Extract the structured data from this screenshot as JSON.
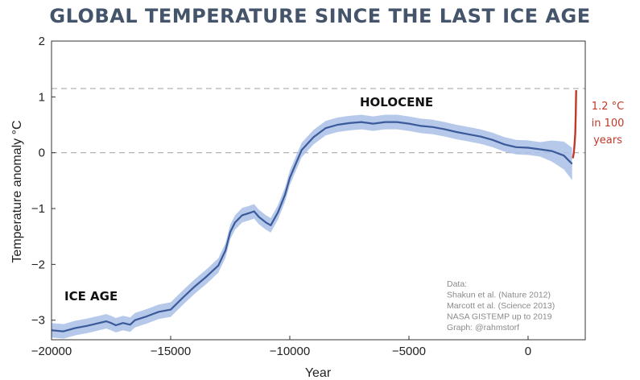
{
  "title": "GLOBAL TEMPERATURE SINCE THE LAST ICE AGE",
  "chart_data": {
    "type": "line",
    "title": "GLOBAL TEMPERATURE SINCE THE LAST ICE AGE",
    "xlabel": "Year",
    "ylabel": "Temperature anomaly °C",
    "xlim": [
      -20000,
      2400
    ],
    "ylim": [
      -3.35,
      2
    ],
    "xticks": [
      -20000,
      -15000,
      -10000,
      -5000,
      0
    ],
    "xtick_labels": [
      "−20000",
      "−15000",
      "−10000",
      "−5000",
      "0"
    ],
    "yticks": [
      2,
      1,
      0,
      -1,
      -2,
      -3
    ],
    "ytick_labels": [
      "2",
      "1",
      "0",
      "−1",
      "−2",
      "−3"
    ],
    "reference_lines": [
      0,
      1.15
    ],
    "series": [
      {
        "band_halfwidth": 0.13,
        "line_color": "#3b5a9a",
        "band_color": "#a9bfe6",
        "x": [
          -20000,
          -19500,
          -19000,
          -18500,
          -18000,
          -17700,
          -17500,
          -17300,
          -17000,
          -16700,
          -16500,
          -16000,
          -15500,
          -15000,
          -14500,
          -14000,
          -13500,
          -13000,
          -12700,
          -12500,
          -12300,
          -12000,
          -11700,
          -11500,
          -11300,
          -11000,
          -10800,
          -10500,
          -10200,
          -10000,
          -9800,
          -9500,
          -9000,
          -8500,
          -8000,
          -7500,
          -7000,
          -6500,
          -6000,
          -5500,
          -5000,
          -4500,
          -4000,
          -3500,
          -3000,
          -2500,
          -2000,
          -1500,
          -1000,
          -500,
          0,
          500,
          1000,
          1500,
          1850
        ],
        "y": [
          -3.18,
          -3.2,
          -3.14,
          -3.1,
          -3.05,
          -3.02,
          -3.05,
          -3.09,
          -3.05,
          -3.08,
          -3.0,
          -2.93,
          -2.85,
          -2.81,
          -2.6,
          -2.4,
          -2.22,
          -2.02,
          -1.75,
          -1.42,
          -1.25,
          -1.12,
          -1.08,
          -1.05,
          -1.15,
          -1.25,
          -1.3,
          -1.07,
          -0.75,
          -0.45,
          -0.25,
          0.05,
          0.28,
          0.44,
          0.5,
          0.53,
          0.55,
          0.52,
          0.55,
          0.55,
          0.52,
          0.48,
          0.46,
          0.42,
          0.37,
          0.33,
          0.29,
          0.23,
          0.15,
          0.1,
          0.09,
          0.06,
          0.03,
          -0.05,
          -0.2
        ]
      },
      {
        "line_color": "#c0392b",
        "x": [
          1880,
          1920,
          1950,
          1980,
          2000,
          2019
        ],
        "y": [
          -0.1,
          0.0,
          0.15,
          0.35,
          0.7,
          1.12
        ]
      }
    ],
    "annotations": {
      "ice_age": "ICE AGE",
      "holocene": "HOLOCENE",
      "warming": [
        "1.2 °C",
        "in 100",
        "years"
      ],
      "sources": [
        "Data:",
        "Shakun et al. (Nature 2012)",
        "Marcott et al. (Science 2013)",
        "NASA GISTEMP up to 2019",
        "Graph: @rahmstorf"
      ]
    }
  }
}
